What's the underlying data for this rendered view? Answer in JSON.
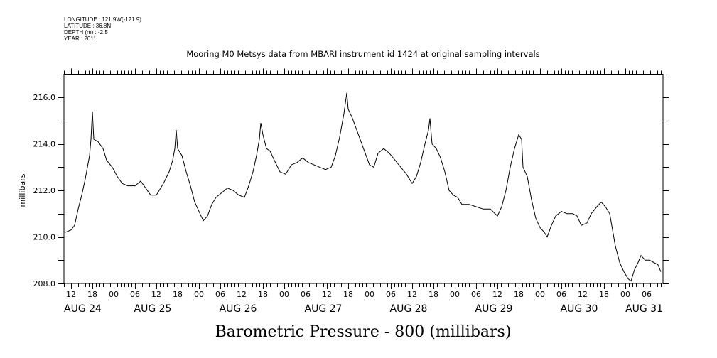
{
  "meta": {
    "longitude": "LONGITUDE : 121.9W(-121.9)",
    "latitude": "LATITUDE : 36.8N",
    "depth": "DEPTH (m) : -2.5",
    "year": "YEAR : 2011"
  },
  "chart_data": {
    "type": "line",
    "title": "Mooring M0 Metsys data from MBARI instrument id 1424 at original sampling intervals",
    "xlabel": "Barometric Pressure - 800 (millibars)",
    "ylabel": "millibars",
    "x_units": "hours since AUG 24 00:00",
    "xlim": [
      10,
      178.6
    ],
    "ylim": [
      208,
      217
    ],
    "y_ticks": [
      208,
      210,
      212,
      214,
      216
    ],
    "y_tick_labels": [
      "208.0",
      "210.0",
      "212.0",
      "214.0",
      "216.0"
    ],
    "x_ticks": [
      12,
      18,
      24,
      30,
      36,
      42,
      48,
      54,
      60,
      66,
      72,
      78,
      84,
      90,
      96,
      102,
      108,
      114,
      120,
      126,
      132,
      138,
      144,
      150,
      156,
      162,
      168,
      174
    ],
    "x_tick_labels": [
      "12",
      "18",
      "00",
      "06",
      "12",
      "18",
      "00",
      "06",
      "12",
      "18",
      "00",
      "06",
      "12",
      "18",
      "00",
      "06",
      "12",
      "18",
      "00",
      "06",
      "12",
      "18",
      "00",
      "06",
      "12",
      "18",
      "00",
      "06"
    ],
    "day_labels": [
      {
        "label": "AUG 24",
        "day": 0
      },
      {
        "label": "AUG 25",
        "day": 1
      },
      {
        "label": "AUG 26",
        "day": 2
      },
      {
        "label": "AUG 27",
        "day": 3
      },
      {
        "label": "AUG 28",
        "day": 4
      },
      {
        "label": "AUG 29",
        "day": 5
      },
      {
        "label": "AUG 30",
        "day": 6
      },
      {
        "label": "AUG 31",
        "day": 7
      }
    ],
    "grid": false,
    "series": [
      {
        "name": "Barometric Pressure - 800",
        "x": [
          10.4,
          12,
          13,
          14,
          15,
          16,
          16.6,
          17.2,
          17.6,
          18,
          18.4,
          19.6,
          21,
          22,
          23.6,
          25,
          26.4,
          28,
          30,
          31.6,
          33,
          34.4,
          36,
          38,
          39.6,
          40.6,
          41.2,
          41.6,
          42,
          43.2,
          44.4,
          45.6,
          46.8,
          48,
          49.2,
          50.4,
          51.6,
          52.8,
          54.4,
          56,
          57.6,
          59.2,
          60.8,
          62,
          63.2,
          64.2,
          65,
          65.4,
          66,
          67,
          68,
          69.2,
          70.8,
          72.4,
          74,
          75.6,
          77.2,
          78.8,
          80.4,
          82,
          83.6,
          85.2,
          86.4,
          87.6,
          88.8,
          89.6,
          90,
          91.2,
          92.4,
          93.6,
          94.8,
          96,
          97.2,
          98.4,
          100,
          101.6,
          103.2,
          104.8,
          106.4,
          108,
          109.2,
          110.4,
          111.6,
          112.6,
          113,
          113.6,
          114.8,
          116,
          117.2,
          118.4,
          119.6,
          120.8,
          122,
          124,
          126,
          128,
          130,
          132,
          133.2,
          134.4,
          135.6,
          136.8,
          138,
          138.8,
          139.2,
          140.4,
          141.6,
          142.8,
          144,
          145.2,
          146,
          147.2,
          148.4,
          150,
          151.6,
          153.2,
          154.4,
          155.6,
          157.2,
          158.4,
          160,
          161.2,
          162.4,
          163.6,
          164.4,
          165.2,
          166.4,
          167.6,
          168.8,
          169.6,
          170.6,
          171.6,
          172.4,
          173.6,
          174.8,
          176,
          177.2,
          178
        ],
        "y": [
          210.2,
          210.3,
          210.5,
          211.2,
          211.8,
          212.5,
          213.0,
          213.5,
          214.2,
          215.4,
          214.2,
          214.1,
          213.8,
          213.3,
          213.0,
          212.6,
          212.3,
          212.2,
          212.2,
          212.4,
          212.1,
          211.8,
          211.8,
          212.3,
          212.8,
          213.3,
          213.8,
          214.6,
          213.8,
          213.5,
          212.8,
          212.2,
          211.5,
          211.1,
          210.7,
          210.9,
          211.4,
          211.7,
          211.9,
          212.1,
          212.0,
          211.8,
          211.7,
          212.2,
          212.8,
          213.5,
          214.2,
          214.9,
          214.4,
          213.8,
          213.7,
          213.3,
          212.8,
          212.7,
          213.1,
          213.2,
          213.4,
          213.2,
          213.1,
          213.0,
          212.9,
          213.0,
          213.5,
          214.3,
          215.3,
          216.2,
          215.5,
          215.1,
          214.6,
          214.1,
          213.6,
          213.1,
          213.0,
          213.6,
          213.8,
          213.6,
          213.3,
          213.0,
          212.7,
          212.3,
          212.6,
          213.2,
          214.0,
          214.6,
          215.1,
          214.0,
          213.8,
          213.4,
          212.8,
          212.0,
          211.8,
          211.7,
          211.4,
          211.4,
          211.3,
          211.2,
          211.2,
          210.9,
          211.3,
          212.0,
          213.0,
          213.8,
          214.4,
          214.2,
          213.0,
          212.6,
          211.6,
          210.8,
          210.4,
          210.2,
          210.0,
          210.5,
          210.9,
          211.1,
          211.0,
          211.0,
          210.9,
          210.5,
          210.6,
          211.0,
          211.3,
          211.5,
          211.3,
          211.0,
          210.3,
          209.6,
          208.9,
          208.5,
          208.2,
          208.1,
          208.6,
          208.9,
          209.2,
          209.0,
          209.0,
          208.9,
          208.8,
          208.5
        ]
      }
    ]
  }
}
